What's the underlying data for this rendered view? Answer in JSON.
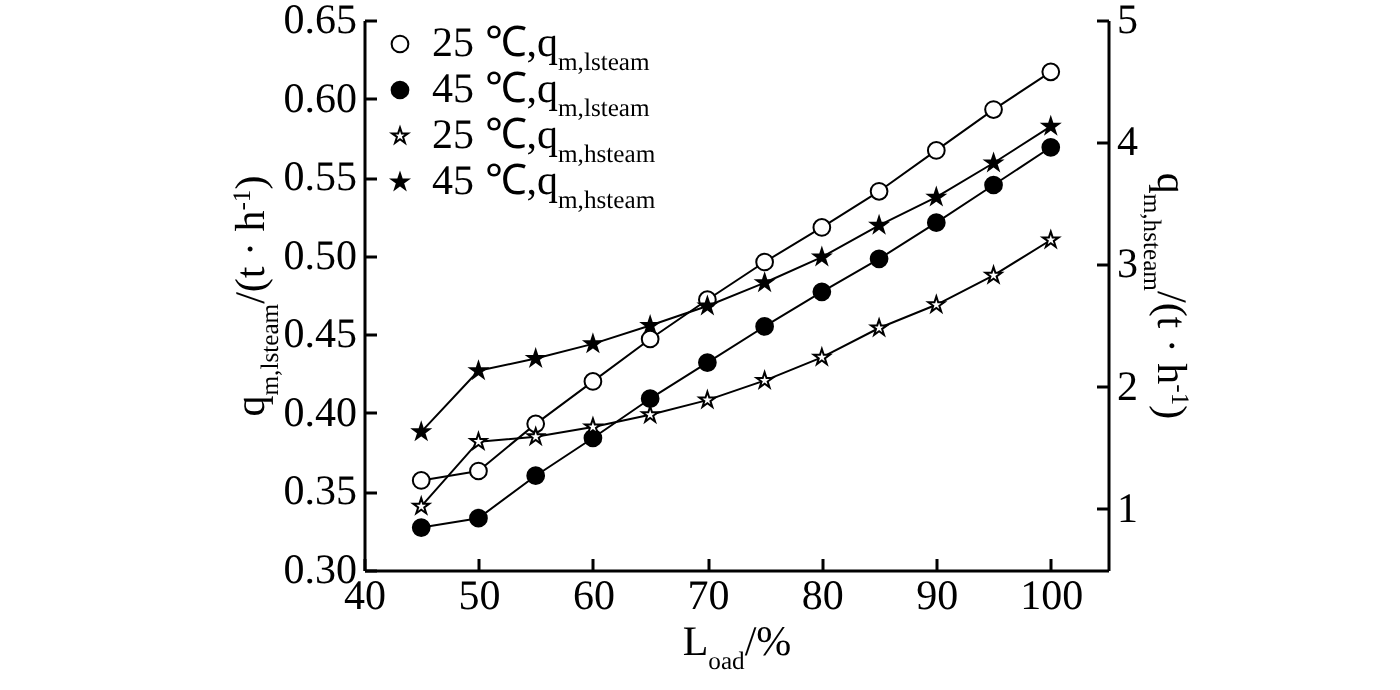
{
  "chart_data": {
    "type": "line",
    "xlabel": "L$_{oad}$/%",
    "ylabel": "q$_{m,lsteam}$/(t · h$^{-1}$)",
    "y2label": "q$_{m,hsteam}$/(t · h$^{-1}$)",
    "x": [
      45,
      50,
      55,
      60,
      65,
      70,
      75,
      80,
      85,
      90,
      95,
      100
    ],
    "series": [
      {
        "name": "25 ℃,q$_{m,lsteam}$",
        "color": "#000000",
        "marker": "circle-open",
        "values": [
          0.357,
          0.363,
          0.393,
          0.42,
          0.447,
          0.472,
          0.496,
          0.518,
          0.541,
          0.567,
          0.593,
          0.617
        ]
      },
      {
        "name": "45 ℃,q$_{m,lsteam}$",
        "color": "#000000",
        "marker": "circle",
        "values": [
          0.327,
          0.333,
          0.36,
          0.384,
          0.409,
          0.432,
          0.455,
          0.477,
          0.498,
          0.521,
          0.545,
          0.569
        ]
      },
      {
        "name": "25 ℃,q$_{m,hsteam}$",
        "color": "#000000",
        "marker": "star-open",
        "axis": "y2",
        "values": [
          1.02,
          1.55,
          1.59,
          1.67,
          1.77,
          1.89,
          2.05,
          2.24,
          2.48,
          2.67,
          2.91,
          3.2
        ]
      },
      {
        "name": "45 ℃,q$_{m,hsteam}$",
        "color": "#000000",
        "marker": "star",
        "axis": "y2",
        "values": [
          1.63,
          2.13,
          2.23,
          2.35,
          2.5,
          2.66,
          2.85,
          3.06,
          3.32,
          3.55,
          3.83,
          4.13
        ]
      }
    ],
    "xlim": [
      40,
      105
    ],
    "xticks": [
      40,
      50,
      60,
      70,
      80,
      90,
      100
    ],
    "ylim": [
      0.3,
      0.65
    ],
    "yticks": [
      {
        "value": 0.3,
        "label": "0.30"
      },
      {
        "value": 0.35,
        "label": "0.35"
      },
      {
        "value": 0.4,
        "label": "0.40"
      },
      {
        "value": 0.45,
        "label": "0.45"
      },
      {
        "value": 0.5,
        "label": "0.50"
      },
      {
        "value": 0.55,
        "label": "0.55"
      },
      {
        "value": 0.6,
        "label": "0.60"
      },
      {
        "value": 0.65,
        "label": "0.65"
      }
    ],
    "y2lim": [
      0.5,
      5
    ],
    "y2ticks": [
      1,
      2,
      3,
      4,
      5
    ],
    "grid": false,
    "legend": "top left",
    "line_style": "solid"
  }
}
